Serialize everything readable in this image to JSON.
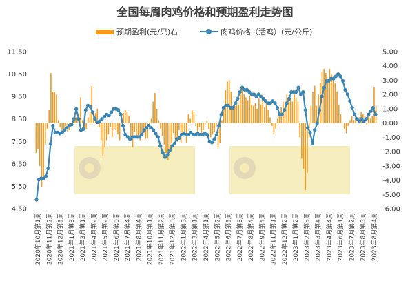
{
  "chart_data": {
    "type": "bar+line",
    "title": "全国每周肉鸡价格和预期盈利走势图",
    "legend": {
      "placement": "top-center"
    },
    "left_axis": {
      "ylim": [
        4.5,
        11.5
      ],
      "ticks": [
        "4.50",
        "5.50",
        "6.50",
        "7.50",
        "8.50",
        "9.50",
        "10.50",
        "11.50"
      ]
    },
    "right_axis": {
      "ylim": [
        -6.0,
        5.0
      ],
      "ticks": [
        "-6.00",
        "-5.00",
        "-4.00",
        "-3.00",
        "-2.00",
        "-1.00",
        "0.00",
        "1.00",
        "2.00",
        "3.00",
        "4.00",
        "5.00"
      ]
    },
    "x_labels": [
      "2020年10月第1周",
      "2020年11月第2周",
      "2020年12月第3周",
      "2021年1月第3周",
      "2021年3月第1周",
      "2021年4月第2周",
      "2021年5月第2周",
      "2021年6月第3周",
      "2021年7月第4周",
      "2021年8月第4周",
      "2021年10月第1周",
      "2021年11月第2周",
      "2021年12月第3周",
      "2022年1月第3周",
      "2022年3月第1周",
      "2022年4月第1周",
      "2022年5月第2周",
      "2022年6月第3周",
      "2022年7月第3周",
      "2022年8月第4周",
      "2022年9月第4周",
      "2022年11月第1周",
      "2022年12月第2周",
      "2023年1月第2周",
      "2023年2月第3周",
      "2023年3月第4周",
      "2023年4月第4周",
      "2023年6月第1周",
      "2023年7月第2周",
      "2023年8月第3周",
      "2023年8月第4周"
    ],
    "series": [
      {
        "name": "预期盈利(元/只)右",
        "type": "bar",
        "axis": "right",
        "color": "#F59A1E",
        "values": [
          -2.1,
          -1.8,
          -3.0,
          -4.5,
          -4.0,
          -1.5,
          -0.4,
          0.9,
          3.5,
          2.2,
          2.2,
          2.0,
          0.2,
          -0.3,
          -0.6,
          -0.4,
          -0.2,
          -0.6,
          -0.5,
          -0.2,
          0.3,
          0.5,
          0.4,
          0.6,
          1.8,
          0.2,
          -0.5,
          -0.4,
          0.4,
          0.8,
          2.6,
          0.8,
          0.7,
          1.0,
          -0.3,
          -1.2,
          -2.3,
          -1.7,
          -1.2,
          -0.8,
          -0.3,
          -1.0,
          -0.4,
          -0.5,
          -0.8,
          -1.2,
          0.4,
          0.7,
          0.9,
          0.8,
          0.5,
          -1.0,
          -1.7,
          -0.6,
          -0.9,
          -1.1,
          -1.2,
          -0.8,
          -0.7,
          -1.1,
          -1.1,
          -0.4,
          0.3,
          1.5,
          2.1,
          1.0,
          0.2,
          -0.4,
          -0.9,
          -1.5,
          -2.1,
          -2.6,
          -1.8,
          -1.4,
          -0.7,
          -1.5,
          -1.3,
          -0.5,
          -1.4,
          -0.8,
          -0.6,
          -1.4,
          0.6,
          0.3,
          0.9,
          0.8,
          -0.2,
          -0.6,
          -0.3,
          -0.8,
          -0.5,
          -0.1,
          0.2,
          -0.4,
          -1.0,
          -0.8,
          -0.6,
          -0.3,
          -1.7,
          -1.4,
          0.2,
          1.0,
          2.3,
          2.9,
          3.0,
          2.2,
          1.0,
          1.2,
          1.5,
          1.3,
          2.0,
          2.4,
          2.0,
          1.8,
          1.6,
          1.9,
          1.3,
          1.2,
          1.4,
          1.0,
          1.7,
          1.3,
          1.9,
          1.1,
          1.6,
          0.9,
          0.4,
          -0.2,
          -0.8,
          -0.4,
          0.3,
          0.7,
          1.1,
          1.5,
          1.0,
          2.0,
          1.7,
          1.7,
          1.5,
          2.0,
          1.8,
          1.5,
          -1.0,
          -2.5,
          -3.2,
          -4.7,
          -3.5,
          -1.0,
          1.2,
          2.2,
          2.6,
          1.2,
          2.0,
          2.8,
          3.6,
          3.8,
          3.5,
          3.0,
          3.8,
          3.4,
          3.0,
          2.8,
          2.2,
          1.3,
          0.6,
          0.0,
          -0.4,
          -0.7,
          -0.2,
          0.2,
          0.5,
          0.2,
          0.3,
          0.0,
          0.4,
          0.8,
          0.6,
          0.5,
          -0.1,
          0.7,
          0.3,
          0.5,
          2.5,
          1.2
        ]
      },
      {
        "name": "肉鸡价格（活鸡）(元/公斤)",
        "type": "line",
        "axis": "left",
        "color": "#3A86B5",
        "values": [
          4.9,
          5.8,
          5.85,
          5.85,
          5.95,
          6.3,
          7.4,
          8.2,
          7.9,
          7.9,
          7.85,
          7.9,
          8.0,
          8.1,
          8.2,
          8.25,
          8.5,
          8.95,
          8.5,
          8.0,
          8.05,
          8.9,
          9.1,
          9.05,
          8.8,
          8.5,
          8.35,
          8.4,
          8.5,
          8.6,
          8.7,
          8.65,
          8.8,
          8.95,
          8.95,
          8.9,
          8.7,
          8.2,
          7.8,
          7.7,
          7.6,
          7.7,
          7.7,
          7.7,
          7.7,
          7.8,
          8.0,
          8.1,
          8.2,
          8.1,
          8.0,
          7.85,
          7.7,
          7.3,
          7.0,
          6.8,
          6.9,
          7.1,
          7.3,
          7.4,
          7.6,
          7.65,
          7.8,
          7.85,
          7.8,
          7.8,
          7.9,
          7.8,
          7.8,
          7.85,
          7.8,
          7.8,
          7.85,
          7.8,
          7.5,
          7.45,
          7.6,
          7.8,
          8.2,
          8.7,
          9.0,
          9.1,
          9.1,
          9.0,
          9.0,
          9.2,
          9.4,
          9.7,
          9.9,
          9.8,
          9.8,
          9.7,
          9.6,
          9.6,
          9.5,
          9.6,
          9.5,
          9.4,
          9.3,
          9.2,
          9.2,
          9.3,
          9.2,
          9.0,
          8.7,
          8.7,
          8.9,
          9.2,
          9.4,
          9.7,
          9.7,
          9.7,
          9.9,
          9.6,
          9.7,
          8.9,
          8.1,
          7.9,
          7.4,
          8.0,
          8.3,
          8.9,
          9.5,
          9.9,
          10.2,
          10.2,
          10.3,
          10.3,
          10.4,
          10.5,
          10.4,
          10.2,
          9.8,
          9.6,
          9.3,
          9.0,
          8.7,
          8.5,
          8.4,
          8.5,
          8.4,
          8.5,
          8.7,
          8.85,
          9.0,
          8.7
        ]
      }
    ]
  }
}
